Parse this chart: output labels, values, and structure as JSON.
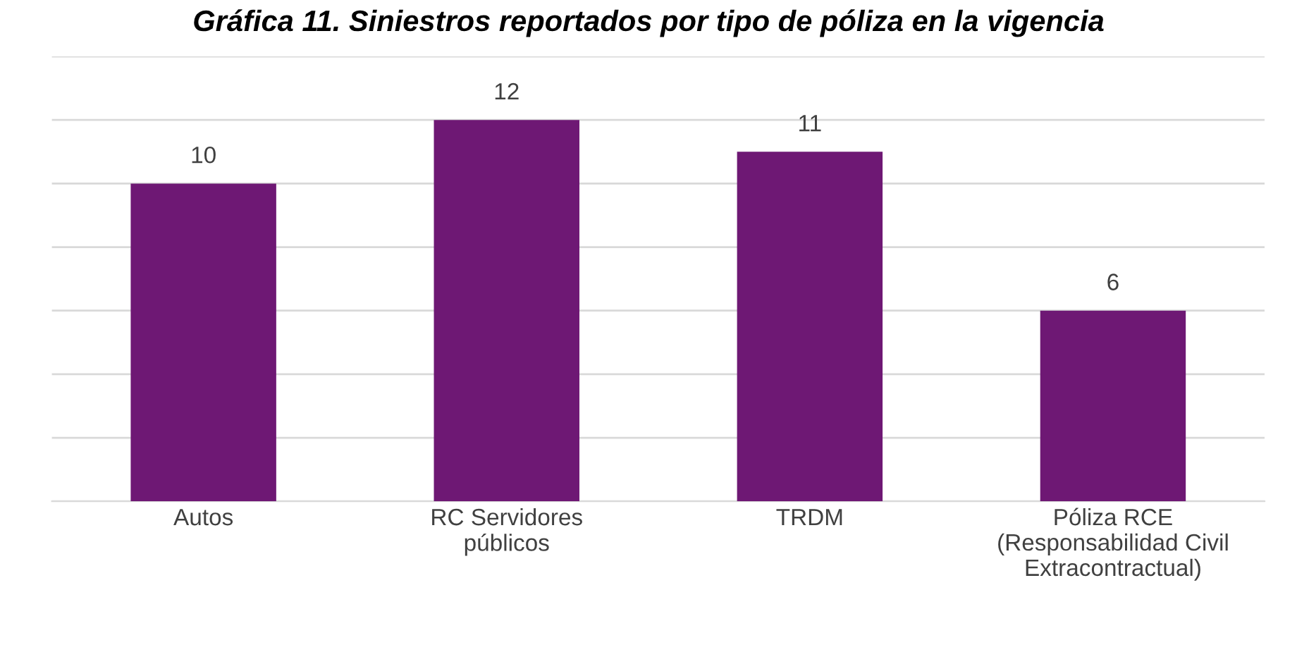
{
  "chart_data": {
    "type": "bar",
    "title": "Gráfica 11. Siniestros reportados por tipo de póliza en la vigencia",
    "categories": [
      "Autos",
      "RC Servidores\npúblicos",
      "TRDM",
      "Póliza RCE\n(Responsabilidad Civil\nExtracontractual)"
    ],
    "values": [
      10,
      12,
      11,
      6
    ],
    "color": "#6e1874",
    "ylim": [
      0,
      14
    ],
    "yticks": [
      {
        "value": 0,
        "label": null
      },
      {
        "value": 2,
        "label": null
      },
      {
        "value": 4,
        "label": null
      },
      {
        "value": 6,
        "label": null
      },
      {
        "value": 8,
        "label": null
      },
      {
        "value": 10,
        "label": null
      },
      {
        "value": 12,
        "label": null
      },
      {
        "value": 14,
        "label": null
      }
    ],
    "tick_labels": "x",
    "grid": "y",
    "data_labels": true
  }
}
